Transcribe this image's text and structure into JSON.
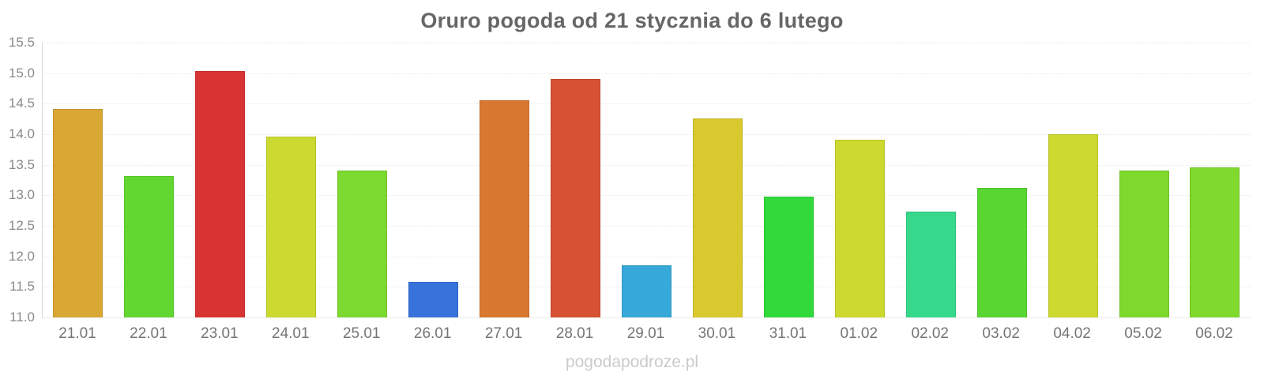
{
  "page": {
    "watermark": "pogodapodroze.pl"
  },
  "chart_data": {
    "type": "bar",
    "title": "Oruro pogoda od 21 stycznia do 6 lutego",
    "categories": [
      "21.01",
      "22.01",
      "23.01",
      "24.01",
      "25.01",
      "26.01",
      "27.01",
      "28.01",
      "29.01",
      "30.01",
      "31.01",
      "01.02",
      "02.02",
      "03.02",
      "04.02",
      "05.02",
      "06.02"
    ],
    "values": [
      14.42,
      13.31,
      15.03,
      13.96,
      13.4,
      11.58,
      14.55,
      14.91,
      11.85,
      14.26,
      12.98,
      13.91,
      12.73,
      13.12,
      14.0,
      13.41,
      13.46
    ],
    "bar_colors": [
      "#d9a733",
      "#63d731",
      "#d93434",
      "#cbd931",
      "#7cd92f",
      "#3873db",
      "#d9782f",
      "#d75232",
      "#36a9d9",
      "#d9c92e",
      "#31d93a",
      "#cdd92e",
      "#36d98b",
      "#58d631",
      "#cdd92e",
      "#7ed92d",
      "#80d92d"
    ],
    "bar_border_colors": [
      "#c4932a",
      "#58c02a",
      "#c22d2d",
      "#b5c22a",
      "#6ec128",
      "#3163c2",
      "#c26929",
      "#c0472b",
      "#2f96c2",
      "#c2b328",
      "#2ac232",
      "#b7c228",
      "#2fc27b",
      "#4dbf2a",
      "#b7c228",
      "#6fc227",
      "#71c227"
    ],
    "xlabel": "",
    "ylabel": "",
    "ylim": [
      11.0,
      15.5
    ],
    "yticks": [
      15.5,
      15.0,
      14.5,
      14.0,
      13.5,
      13.0,
      12.5,
      12.0,
      11.5,
      11.0
    ],
    "grid": "horizontal-dotted",
    "legend": "none",
    "colors": {
      "title": "#666666",
      "tick_label": "#8a8a8a",
      "x_label": "#757575",
      "axis_line": "#d6d6d6",
      "grid_line": "#e9e9e9",
      "watermark": "#cbcbcb",
      "background": "#ffffff"
    }
  }
}
